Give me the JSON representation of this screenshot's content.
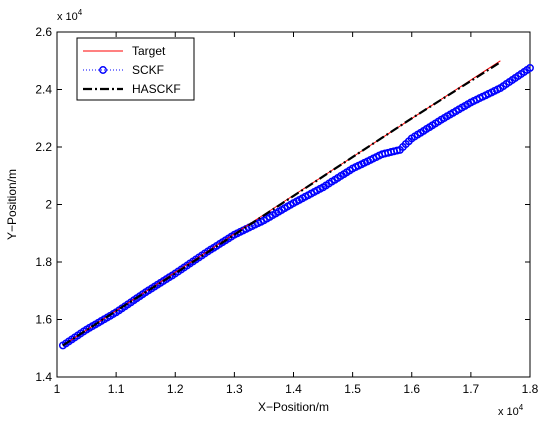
{
  "chart_data": {
    "type": "line",
    "xlabel": "X−Position/m",
    "ylabel": "Y−Position/m",
    "x_multiplier": "x 10",
    "x_multiplier_exp": "4",
    "y_multiplier": "x 10",
    "y_multiplier_exp": "4",
    "xlim": [
      1.0,
      1.8
    ],
    "ylim": [
      1.4,
      2.6
    ],
    "xticks": [
      1.0,
      1.1,
      1.2,
      1.3,
      1.4,
      1.5,
      1.6,
      1.7,
      1.8
    ],
    "xtick_labels": [
      "1",
      "1.1",
      "1.2",
      "1.3",
      "1.4",
      "1.5",
      "1.6",
      "1.7",
      "1.8"
    ],
    "yticks": [
      1.4,
      1.6,
      1.8,
      2.0,
      2.2,
      2.4,
      2.6
    ],
    "ytick_labels": [
      "1.4",
      "1.6",
      "1.8",
      "2",
      "2.2",
      "2.4",
      "2.6"
    ],
    "grid": false,
    "legend_position": "top-left",
    "series": [
      {
        "name": "Target",
        "color": "#ff0000",
        "style": "solid",
        "x": [
          1.01,
          1.75
        ],
        "y": [
          1.51,
          2.5
        ]
      },
      {
        "name": "SCKF",
        "color": "#0000ff",
        "style": "dotted-circle",
        "x": [
          1.01,
          1.05,
          1.1,
          1.15,
          1.2,
          1.25,
          1.3,
          1.35,
          1.4,
          1.45,
          1.5,
          1.55,
          1.58,
          1.6,
          1.65,
          1.7,
          1.75,
          1.8
        ],
        "y": [
          1.51,
          1.565,
          1.625,
          1.695,
          1.76,
          1.83,
          1.895,
          1.945,
          2.005,
          2.06,
          2.125,
          2.175,
          2.19,
          2.23,
          2.295,
          2.355,
          2.405,
          2.475
        ]
      },
      {
        "name": "HASCKF",
        "color": "#000000",
        "style": "dashdot",
        "x": [
          1.01,
          1.1,
          1.2,
          1.3,
          1.4,
          1.5,
          1.6,
          1.7,
          1.75
        ],
        "y": [
          1.51,
          1.63,
          1.76,
          1.895,
          2.03,
          2.165,
          2.3,
          2.43,
          2.495
        ]
      }
    ]
  }
}
